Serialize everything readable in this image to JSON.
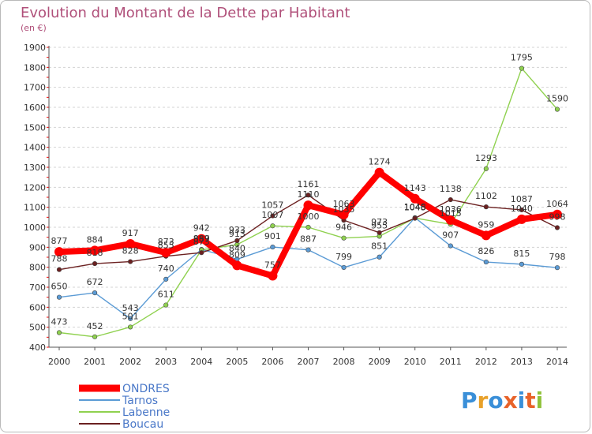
{
  "colors": {
    "ONDRES": "#ff0000",
    "Tarnos": "#5b9bd5",
    "Labenne": "#8fd14f",
    "Boucau": "#6b2020",
    "title": "#b0507a",
    "grid": "#d3d3d3",
    "axis_red_ticks": "#ff0000"
  },
  "logo": {
    "text": "Proxiti",
    "icon": "proxiti-logo"
  },
  "chart_data": {
    "type": "line",
    "title": "Evolution du Montant de la Dette par Habitant",
    "subtitle": "(en €)",
    "x": [
      2000,
      2001,
      2002,
      2003,
      2004,
      2005,
      2006,
      2007,
      2008,
      2009,
      2010,
      2011,
      2012,
      2013,
      2014
    ],
    "ylim": [
      400,
      1900
    ],
    "yticks": [
      400,
      500,
      600,
      700,
      800,
      900,
      1000,
      1100,
      1200,
      1300,
      1400,
      1500,
      1600,
      1700,
      1800,
      1900
    ],
    "grid": "horizontal dashed",
    "legend": "bottom-left",
    "series": [
      {
        "name": "Tarnos",
        "values": [
          650,
          672,
          543,
          740,
          889,
          840,
          901,
          887,
          799,
          851,
          1048,
          907,
          826,
          815,
          798
        ],
        "labels": [
          "650",
          "672",
          "543",
          "740",
          "889",
          "840",
          "901",
          "887",
          "799",
          "851",
          "1048",
          "907",
          "826",
          "815",
          "798"
        ]
      },
      {
        "name": "Labenne",
        "values": [
          473,
          452,
          501,
          611,
          887,
          913,
          1007,
          1000,
          946,
          955,
          1046,
          1015,
          1293,
          1795,
          1590
        ],
        "labels": [
          "473",
          "452",
          "501",
          "611",
          "887",
          "913",
          "1007",
          "1000",
          "946",
          "955",
          "1046",
          "1015",
          "1293",
          "1795",
          "1590"
        ]
      },
      {
        "name": "Boucau",
        "values": [
          788,
          818,
          828,
          855,
          873,
          933,
          1057,
          1161,
          1035,
          973,
          1045,
          1138,
          1102,
          1087,
          998
        ],
        "labels": [
          "788",
          "818",
          "828",
          "855",
          "873",
          "933",
          "1057",
          "1161",
          "1035",
          "973",
          "1045",
          "1138",
          "1102",
          "1087",
          "998"
        ]
      },
      {
        "name": "ONDRES",
        "values": [
          877,
          884,
          917,
          873,
          942,
          809,
          757,
          1110,
          1063,
          1274,
          1143,
          1036,
          959,
          1040,
          1064
        ],
        "labels": [
          "877",
          "884",
          "917",
          "873",
          "942",
          "809",
          "757",
          "1110",
          "1063",
          "1274",
          "1143",
          "1036",
          "959",
          "1040",
          "1064"
        ]
      }
    ]
  }
}
